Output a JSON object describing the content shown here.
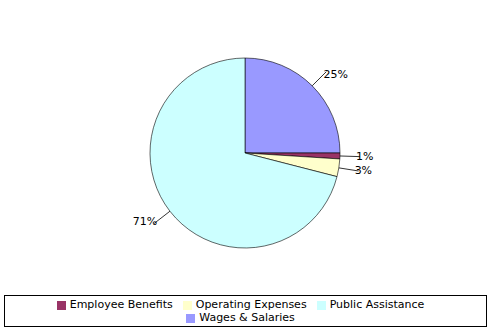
{
  "chart_data": {
    "type": "pie",
    "categories": [
      "Wages & Salaries",
      "Employee Benefits",
      "Operating Expenses",
      "Public Assistance"
    ],
    "values": [
      25,
      1,
      3,
      71
    ],
    "value_labels": [
      "25%",
      "1%",
      "3%",
      "71%"
    ],
    "colors": [
      "#9999ff",
      "#993366",
      "#ffffcc",
      "#ccffff"
    ],
    "data_labels": true,
    "legend": "bottom"
  }
}
